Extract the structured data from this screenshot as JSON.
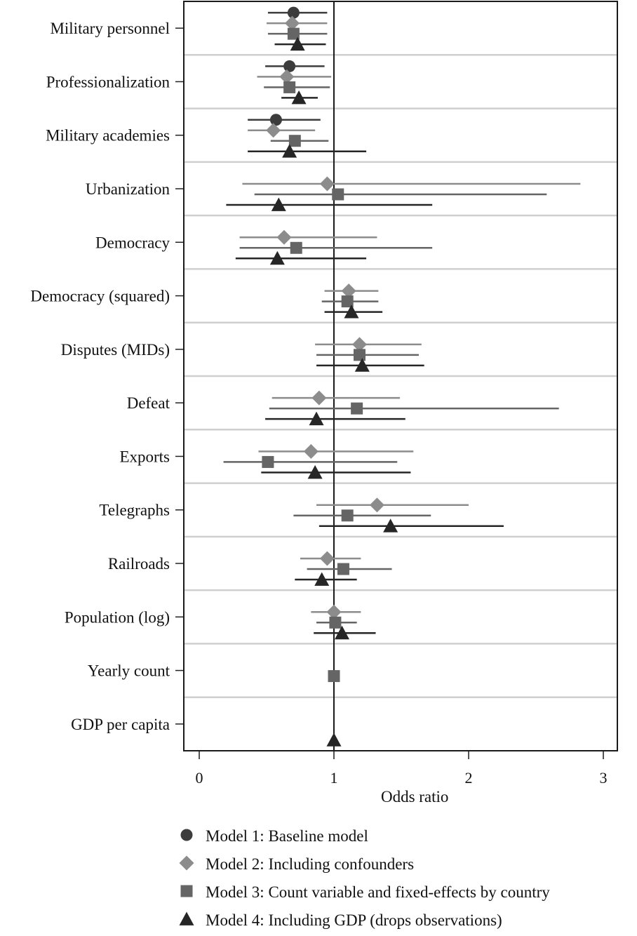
{
  "chart_data": {
    "type": "forest",
    "xlabel": "Odds ratio",
    "x_ticks": [
      0,
      1,
      2,
      3
    ],
    "xlim": [
      -0.11,
      3.1
    ],
    "reference_line": 1,
    "grid": "horizontal separators between variables",
    "legend_position": "bottom",
    "categories": [
      "Military personnel",
      "Professionalization",
      "Military academies",
      "Urbanization",
      "Democracy",
      "Democracy (squared)",
      "Disputes (MIDs)",
      "Defeat",
      "Exports",
      "Telegraphs",
      "Railroads",
      "Population (log)",
      "Yearly count",
      "GDP per capita"
    ],
    "series": [
      {
        "name": "Model 1: Baseline model",
        "marker": "circle",
        "color": "#3c3c3c",
        "points": [
          {
            "category": "Military personnel",
            "est": 0.7,
            "lo": 0.51,
            "hi": 0.95
          },
          {
            "category": "Professionalization",
            "est": 0.67,
            "lo": 0.49,
            "hi": 0.93
          },
          {
            "category": "Military academies",
            "est": 0.57,
            "lo": 0.36,
            "hi": 0.9
          }
        ]
      },
      {
        "name": "Model 2: Including confounders",
        "marker": "diamond",
        "color": "#8c8c8c",
        "points": [
          {
            "category": "Military personnel",
            "est": 0.69,
            "lo": 0.5,
            "hi": 0.95
          },
          {
            "category": "Professionalization",
            "est": 0.65,
            "lo": 0.43,
            "hi": 0.98
          },
          {
            "category": "Military academies",
            "est": 0.55,
            "lo": 0.36,
            "hi": 0.86
          },
          {
            "category": "Urbanization",
            "est": 0.95,
            "lo": 0.32,
            "hi": 2.83
          },
          {
            "category": "Democracy",
            "est": 0.63,
            "lo": 0.3,
            "hi": 1.32
          },
          {
            "category": "Democracy (squared)",
            "est": 1.11,
            "lo": 0.93,
            "hi": 1.33
          },
          {
            "category": "Disputes (MIDs)",
            "est": 1.19,
            "lo": 0.86,
            "hi": 1.65
          },
          {
            "category": "Defeat",
            "est": 0.89,
            "lo": 0.54,
            "hi": 1.49
          },
          {
            "category": "Exports",
            "est": 0.83,
            "lo": 0.44,
            "hi": 1.59
          },
          {
            "category": "Telegraphs",
            "est": 1.32,
            "lo": 0.87,
            "hi": 2.0
          },
          {
            "category": "Railroads",
            "est": 0.95,
            "lo": 0.75,
            "hi": 1.2
          },
          {
            "category": "Population (log)",
            "est": 1.0,
            "lo": 0.83,
            "hi": 1.2
          }
        ]
      },
      {
        "name": "Model 3: Count variable and fixed-effects by country",
        "marker": "square",
        "color": "#656565",
        "points": [
          {
            "category": "Military personnel",
            "est": 0.7,
            "lo": 0.51,
            "hi": 0.95
          },
          {
            "category": "Professionalization",
            "est": 0.67,
            "lo": 0.48,
            "hi": 0.97
          },
          {
            "category": "Military academies",
            "est": 0.71,
            "lo": 0.53,
            "hi": 0.96
          },
          {
            "category": "Urbanization",
            "est": 1.03,
            "lo": 0.41,
            "hi": 2.58
          },
          {
            "category": "Democracy",
            "est": 0.72,
            "lo": 0.3,
            "hi": 1.73
          },
          {
            "category": "Democracy (squared)",
            "est": 1.1,
            "lo": 0.91,
            "hi": 1.33
          },
          {
            "category": "Disputes (MIDs)",
            "est": 1.19,
            "lo": 0.87,
            "hi": 1.63
          },
          {
            "category": "Defeat",
            "est": 1.17,
            "lo": 0.52,
            "hi": 2.67
          },
          {
            "category": "Exports",
            "est": 0.51,
            "lo": 0.18,
            "hi": 1.47
          },
          {
            "category": "Telegraphs",
            "est": 1.1,
            "lo": 0.7,
            "hi": 1.72
          },
          {
            "category": "Railroads",
            "est": 1.07,
            "lo": 0.8,
            "hi": 1.43
          },
          {
            "category": "Population (log)",
            "est": 1.01,
            "lo": 0.87,
            "hi": 1.17
          },
          {
            "category": "Yearly count",
            "est": 1.0,
            "lo": 0.99,
            "hi": 1.01
          }
        ]
      },
      {
        "name": "Model 4: Including GDP (drops observations)",
        "marker": "triangle",
        "color": "#262626",
        "points": [
          {
            "category": "Military personnel",
            "est": 0.73,
            "lo": 0.56,
            "hi": 0.94
          },
          {
            "category": "Professionalization",
            "est": 0.74,
            "lo": 0.61,
            "hi": 0.88
          },
          {
            "category": "Military academies",
            "est": 0.67,
            "lo": 0.36,
            "hi": 1.24
          },
          {
            "category": "Urbanization",
            "est": 0.59,
            "lo": 0.2,
            "hi": 1.73
          },
          {
            "category": "Democracy",
            "est": 0.58,
            "lo": 0.27,
            "hi": 1.24
          },
          {
            "category": "Democracy (squared)",
            "est": 1.13,
            "lo": 0.93,
            "hi": 1.36
          },
          {
            "category": "Disputes (MIDs)",
            "est": 1.21,
            "lo": 0.87,
            "hi": 1.67
          },
          {
            "category": "Defeat",
            "est": 0.87,
            "lo": 0.49,
            "hi": 1.53
          },
          {
            "category": "Exports",
            "est": 0.86,
            "lo": 0.46,
            "hi": 1.57
          },
          {
            "category": "Telegraphs",
            "est": 1.42,
            "lo": 0.89,
            "hi": 2.26
          },
          {
            "category": "Railroads",
            "est": 0.91,
            "lo": 0.71,
            "hi": 1.17
          },
          {
            "category": "Population (log)",
            "est": 1.06,
            "lo": 0.85,
            "hi": 1.31
          },
          {
            "category": "GDP per capita",
            "est": 1.0,
            "lo": 0.99,
            "hi": 1.01
          }
        ]
      }
    ]
  }
}
